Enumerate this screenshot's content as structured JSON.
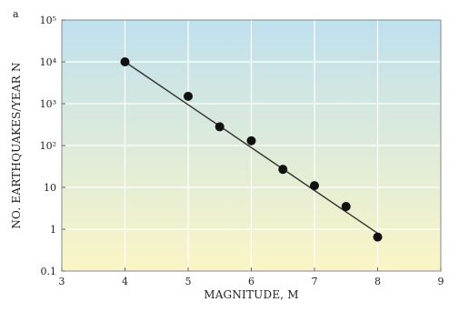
{
  "chart_data": {
    "type": "scatter",
    "panel_label": "a",
    "title": "",
    "xlabel": "MAGNITUDE, M",
    "ylabel": "NO. EARTHQUAKES/YEAR N",
    "xlim": [
      3,
      9
    ],
    "ylim": [
      0.1,
      100000
    ],
    "yscale": "log",
    "x_ticks": [
      "3",
      "4",
      "5",
      "6",
      "7",
      "8",
      "9"
    ],
    "y_ticks": [
      {
        "value": 0.1,
        "label": "0.1"
      },
      {
        "value": 1,
        "label": "1"
      },
      {
        "value": 10,
        "label": "10"
      },
      {
        "value": 100,
        "label": "10²"
      },
      {
        "value": 1000,
        "label": "10³"
      },
      {
        "value": 10000,
        "label": "10⁴"
      },
      {
        "value": 100000,
        "label": "10⁵"
      }
    ],
    "grid": true,
    "series": [
      {
        "points": [
          {
            "x": 4.0,
            "y": 10000
          },
          {
            "x": 5.0,
            "y": 1500
          },
          {
            "x": 5.5,
            "y": 280
          },
          {
            "x": 6.0,
            "y": 130
          },
          {
            "x": 6.5,
            "y": 27
          },
          {
            "x": 7.0,
            "y": 11
          },
          {
            "x": 7.5,
            "y": 3.5
          },
          {
            "x": 8.0,
            "y": 0.65
          }
        ]
      }
    ],
    "fit_line": {
      "x": [
        4,
        8
      ],
      "y": [
        10000,
        0.8
      ]
    },
    "colors": {
      "background_top": "#bfe0ee",
      "background_bottom": "#fbf5c6",
      "grid": "#ffffff",
      "marker": "#111111",
      "line": "#333333"
    }
  }
}
